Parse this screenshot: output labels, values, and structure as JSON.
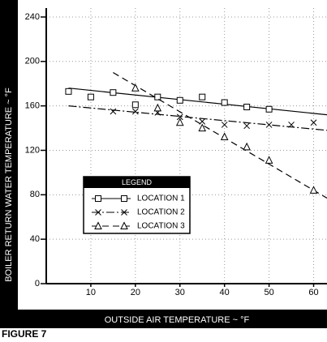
{
  "chart_data": {
    "type": "scatter",
    "ylabel": "BOILER RETURN WATER TEMPERATURE ~ °F",
    "xlabel": "OUTSIDE AIR TEMPERATURE ~ °F",
    "figure_label": "FIGURE 7",
    "legend_title": "LEGEND",
    "xlim": [
      0,
      63
    ],
    "ylim": [
      0,
      248
    ],
    "xticks": [
      10,
      20,
      30,
      40,
      50,
      60
    ],
    "yticks": [
      0,
      40,
      80,
      120,
      160,
      200,
      240
    ],
    "grid": true,
    "series": [
      {
        "name": "LOCATION 1",
        "color": "#000000",
        "marker": "square",
        "dash": "solid",
        "x": [
          5,
          10,
          15,
          20,
          25,
          30,
          35,
          40,
          45,
          50
        ],
        "values": [
          173,
          168,
          172,
          161,
          168,
          165,
          168,
          163,
          159,
          157
        ],
        "trend": {
          "x": [
            5,
            63
          ],
          "y": [
            176,
            152
          ]
        }
      },
      {
        "name": "LOCATION 2",
        "color": "#000000",
        "marker": "x",
        "dash": "dashdot",
        "x": [
          15,
          20,
          25,
          30,
          35,
          40,
          45,
          50,
          55,
          60
        ],
        "values": [
          155,
          155,
          154,
          150,
          146,
          143,
          142,
          143,
          143,
          145
        ],
        "trend": {
          "x": [
            5,
            63
          ],
          "y": [
            160,
            138
          ]
        }
      },
      {
        "name": "LOCATION 3",
        "color": "#000000",
        "marker": "triangle",
        "dash": "dashed",
        "x": [
          20,
          25,
          30,
          35,
          40,
          45,
          50,
          60
        ],
        "values": [
          176,
          158,
          145,
          140,
          132,
          123,
          111,
          84
        ],
        "trend": {
          "x": [
            15,
            63
          ],
          "y": [
            190,
            77
          ]
        }
      }
    ]
  }
}
